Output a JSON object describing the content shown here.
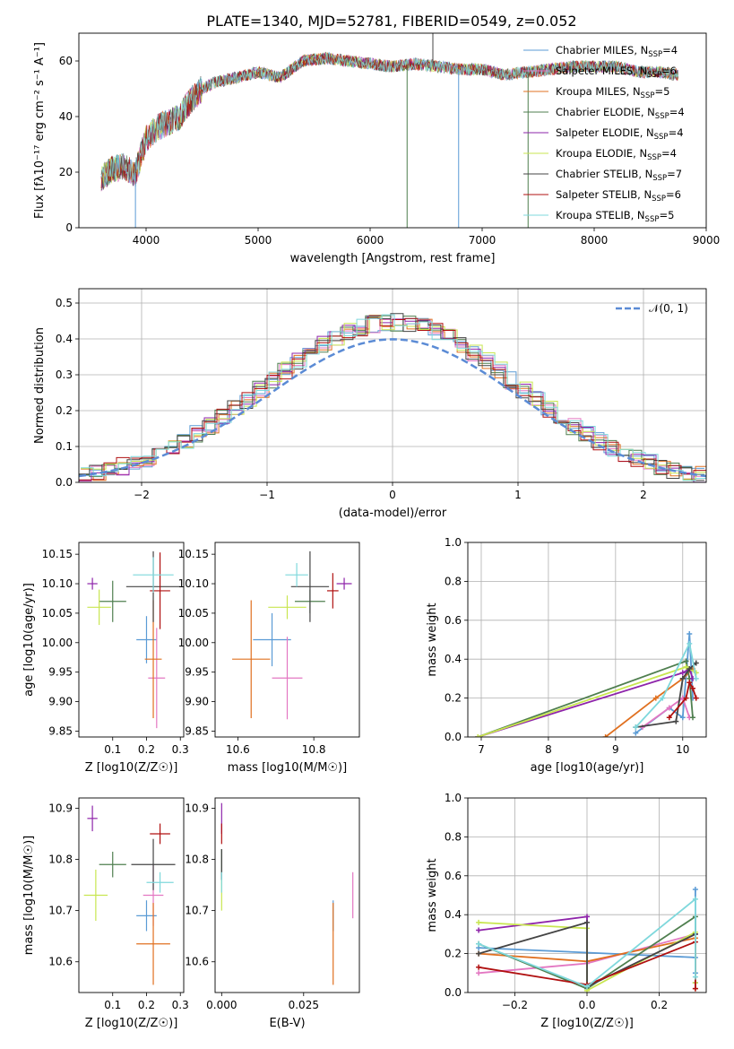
{
  "figure_title": "PLATE=1340, MJD=52781, FIBERID=0549, z=0.052",
  "models": [
    {
      "name": "Chabrier MILES",
      "nssp": "4",
      "color": "#5b9bd5"
    },
    {
      "name": "Salpeter MILES",
      "nssp": "6",
      "color": "#e377c2"
    },
    {
      "name": "Kroupa MILES",
      "nssp": "5",
      "color": "#e07020"
    },
    {
      "name": "Chabrier ELODIE",
      "nssp": "4",
      "color": "#4f7f4f"
    },
    {
      "name": "Salpeter ELODIE",
      "nssp": "4",
      "color": "#8e24aa"
    },
    {
      "name": "Kroupa ELODIE",
      "nssp": "4",
      "color": "#c8e650"
    },
    {
      "name": "Chabrier STELIB",
      "nssp": "7",
      "color": "#444444"
    },
    {
      "name": "Salpeter STELIB",
      "nssp": "6",
      "color": "#b01010"
    },
    {
      "name": "Kroupa STELIB",
      "nssp": "5",
      "color": "#7fd8dc"
    }
  ],
  "chart_data": [
    {
      "id": "spectrum",
      "type": "line",
      "xlabel": "wavelength [Angstrom, rest frame]",
      "ylabel": "Flux [fλ10⁻¹⁷ erg cm⁻² s⁻¹ A⁻¹]",
      "xlim": [
        3400,
        9000
      ],
      "ylim": [
        0,
        70
      ],
      "xticks": [
        4000,
        5000,
        6000,
        7000,
        8000,
        9000
      ],
      "yticks": [
        0,
        20,
        40,
        60
      ],
      "grid": false,
      "legend": "top-right",
      "shape_x": [
        3600,
        3700,
        3800,
        3900,
        4000,
        4100,
        4200,
        4300,
        4400,
        4500,
        4600,
        4800,
        5000,
        5200,
        5400,
        5600,
        5800,
        6000,
        6200,
        6400,
        6600,
        6800,
        7000,
        7200,
        7400,
        7600,
        7800,
        8000,
        8200,
        8400,
        8600,
        8750
      ],
      "shape_y": [
        18,
        21,
        22,
        19,
        32,
        36,
        38,
        40,
        46,
        50,
        52,
        54,
        56,
        54,
        60,
        61,
        60,
        59,
        58,
        59,
        58,
        57,
        57,
        55,
        56,
        57,
        58,
        58,
        58,
        56,
        56,
        55
      ],
      "spikes": [
        {
          "x": 3905,
          "y": 0
        },
        {
          "x": 6330,
          "y": 0
        },
        {
          "x": 6560,
          "y": 70
        },
        {
          "x": 6790,
          "y": 0
        },
        {
          "x": 7410,
          "y": 0
        }
      ]
    },
    {
      "id": "residuals",
      "type": "histogram",
      "xlabel": "(data-model)/error",
      "ylabel": "Normed distribution",
      "xlim": [
        -2.5,
        2.5
      ],
      "ylim": [
        0,
        0.54
      ],
      "xticks": [
        -2,
        -1,
        0,
        1,
        2
      ],
      "yticks": [
        0.0,
        0.1,
        0.2,
        0.3,
        0.4,
        0.5
      ],
      "grid": true,
      "legend": "top-right",
      "reference_curve": "𝒩(0, 1)",
      "reference_color": "#5b8bd5",
      "bin_width": 0.1
    },
    {
      "id": "age-vs-Z",
      "type": "scatter-errorbar",
      "xlabel": "Z [log10(Z/Z☉)]",
      "ylabel": "age  [log10(age/yr)]",
      "xlim": [
        0.0,
        0.31
      ],
      "ylim": [
        9.84,
        10.17
      ],
      "xticks": [
        0.1,
        0.2,
        0.3
      ],
      "yticks": [
        9.85,
        9.9,
        9.95,
        10.0,
        10.05,
        10.1,
        10.15
      ],
      "points": [
        {
          "m": 0,
          "x": 0.2,
          "y": 10.005,
          "xe": 0.03,
          "ye": 0.04
        },
        {
          "m": 1,
          "x": 0.23,
          "y": 9.94,
          "xe": 0.025,
          "ye": 0.085
        },
        {
          "m": 2,
          "x": 0.22,
          "y": 9.972,
          "xe": 0.025,
          "ye": 0.1
        },
        {
          "m": 3,
          "x": 0.1,
          "y": 10.07,
          "xe": 0.04,
          "ye": 0.035
        },
        {
          "m": 4,
          "x": 0.04,
          "y": 10.1,
          "xe": 0.015,
          "ye": 0.01
        },
        {
          "m": 5,
          "x": 0.06,
          "y": 10.06,
          "xe": 0.035,
          "ye": 0.03
        },
        {
          "m": 6,
          "x": 0.22,
          "y": 10.095,
          "xe": 0.08,
          "ye": 0.06
        },
        {
          "m": 7,
          "x": 0.24,
          "y": 10.088,
          "xe": 0.03,
          "ye": 0.065
        },
        {
          "m": 8,
          "x": 0.22,
          "y": 10.115,
          "xe": 0.06,
          "ye": 0.03
        }
      ]
    },
    {
      "id": "age-vs-mass",
      "type": "scatter-errorbar",
      "xlabel": "mass [log10(M/M☉)]",
      "ylabel": "",
      "xlim": [
        10.54,
        10.92
      ],
      "ylim": [
        9.84,
        10.17
      ],
      "xticks": [
        10.6,
        10.8
      ],
      "yticks": [
        9.85,
        9.9,
        9.95,
        10.0,
        10.05,
        10.1,
        10.15
      ],
      "points": [
        {
          "m": 0,
          "x": 10.69,
          "y": 10.005,
          "xe": 0.05,
          "ye": 0.045
        },
        {
          "m": 1,
          "x": 10.73,
          "y": 9.94,
          "xe": 0.04,
          "ye": 0.07
        },
        {
          "m": 2,
          "x": 10.635,
          "y": 9.972,
          "xe": 0.05,
          "ye": 0.1
        },
        {
          "m": 3,
          "x": 10.79,
          "y": 10.07,
          "xe": 0.04,
          "ye": 0.02
        },
        {
          "m": 4,
          "x": 10.88,
          "y": 10.1,
          "xe": 0.02,
          "ye": 0.01
        },
        {
          "m": 5,
          "x": 10.73,
          "y": 10.06,
          "xe": 0.05,
          "ye": 0.02
        },
        {
          "m": 6,
          "x": 10.79,
          "y": 10.095,
          "xe": 0.05,
          "ye": 0.06
        },
        {
          "m": 7,
          "x": 10.85,
          "y": 10.088,
          "xe": 0.015,
          "ye": 0.03
        },
        {
          "m": 8,
          "x": 10.755,
          "y": 10.115,
          "xe": 0.03,
          "ye": 0.02
        }
      ]
    },
    {
      "id": "mass-weight-vs-age",
      "type": "line",
      "xlabel": "age  [log10(age/yr)]",
      "ylabel": "mass weight",
      "xlim": [
        6.8,
        10.35
      ],
      "ylim": [
        0,
        1.0
      ],
      "xticks": [
        7,
        8,
        9,
        10
      ],
      "yticks": [
        0.0,
        0.2,
        0.4,
        0.6,
        0.8,
        1.0
      ],
      "grid": true,
      "series": [
        {
          "m": 0,
          "x": [
            9.3,
            9.8,
            10.0,
            10.1,
            10.15
          ],
          "y": [
            0.02,
            0.15,
            0.1,
            0.53,
            0.2
          ]
        },
        {
          "m": 1,
          "x": [
            9.4,
            9.8,
            10.0,
            10.1
          ],
          "y": [
            0.05,
            0.15,
            0.2,
            0.1
          ]
        },
        {
          "m": 2,
          "x": [
            8.85,
            9.6,
            10.0,
            10.15
          ],
          "y": [
            0.0,
            0.2,
            0.3,
            0.35
          ]
        },
        {
          "m": 3,
          "x": [
            6.95,
            10.05,
            10.1,
            10.15
          ],
          "y": [
            0.0,
            0.39,
            0.3,
            0.1
          ]
        },
        {
          "m": 4,
          "x": [
            6.95,
            10.0,
            10.1,
            10.15
          ],
          "y": [
            0.0,
            0.33,
            0.35,
            0.3
          ]
        },
        {
          "m": 5,
          "x": [
            6.95,
            10.05,
            10.1,
            10.2
          ],
          "y": [
            0.0,
            0.36,
            0.35,
            0.33
          ]
        },
        {
          "m": 6,
          "x": [
            9.3,
            9.9,
            10.0,
            10.1,
            10.2
          ],
          "y": [
            0.05,
            0.08,
            0.3,
            0.35,
            0.38
          ]
        },
        {
          "m": 7,
          "x": [
            9.8,
            10.05,
            10.1,
            10.15,
            10.2
          ],
          "y": [
            0.1,
            0.2,
            0.28,
            0.25,
            0.2
          ]
        },
        {
          "m": 8,
          "x": [
            9.3,
            9.7,
            10.1,
            10.2
          ],
          "y": [
            0.05,
            0.2,
            0.48,
            0.3
          ]
        }
      ]
    },
    {
      "id": "mass-vs-Z",
      "type": "scatter-errorbar",
      "xlabel": "Z [log10(Z/Z☉)]",
      "ylabel": "mass [log10(M/M☉)]",
      "xlim": [
        0.0,
        0.31
      ],
      "ylim": [
        10.54,
        10.92
      ],
      "xticks": [
        0.1,
        0.2,
        0.3
      ],
      "yticks": [
        10.6,
        10.7,
        10.8,
        10.9
      ],
      "points": [
        {
          "m": 0,
          "x": 0.2,
          "y": 10.69,
          "xe": 0.03,
          "ye": 0.03
        },
        {
          "m": 1,
          "x": 0.22,
          "y": 10.73,
          "xe": 0.03,
          "ye": 0.06
        },
        {
          "m": 2,
          "x": 0.22,
          "y": 10.635,
          "xe": 0.05,
          "ye": 0.08
        },
        {
          "m": 3,
          "x": 0.1,
          "y": 10.79,
          "xe": 0.04,
          "ye": 0.025
        },
        {
          "m": 4,
          "x": 0.04,
          "y": 10.88,
          "xe": 0.015,
          "ye": 0.025
        },
        {
          "m": 5,
          "x": 0.05,
          "y": 10.73,
          "xe": 0.035,
          "ye": 0.05
        },
        {
          "m": 6,
          "x": 0.22,
          "y": 10.79,
          "xe": 0.065,
          "ye": 0.05
        },
        {
          "m": 7,
          "x": 0.24,
          "y": 10.85,
          "xe": 0.03,
          "ye": 0.02
        },
        {
          "m": 8,
          "x": 0.24,
          "y": 10.755,
          "xe": 0.04,
          "ye": 0.02
        }
      ]
    },
    {
      "id": "mass-vs-EBV",
      "type": "scatter-errorbar",
      "xlabel": "E(B-V)",
      "ylabel": "",
      "xlim": [
        -0.002,
        0.042
      ],
      "ylim": [
        10.54,
        10.92
      ],
      "xticks": [
        0.0,
        0.025
      ],
      "yticks": [
        10.6,
        10.7,
        10.8,
        10.9
      ],
      "points": [
        {
          "m": 0,
          "x": 0.034,
          "y": 10.69,
          "xe": 0,
          "ye": 0.03
        },
        {
          "m": 1,
          "x": 0.04,
          "y": 10.73,
          "xe": 0,
          "ye": 0.045
        },
        {
          "m": 2,
          "x": 0.034,
          "y": 10.635,
          "xe": 0,
          "ye": 0.08
        },
        {
          "m": 3,
          "x": 0.0,
          "y": 10.79,
          "xe": 0,
          "ye": 0.03
        },
        {
          "m": 4,
          "x": 0.0,
          "y": 10.88,
          "xe": 0,
          "ye": 0.03
        },
        {
          "m": 5,
          "x": 0.0,
          "y": 10.73,
          "xe": 0,
          "ye": 0.03
        },
        {
          "m": 6,
          "x": 0.0,
          "y": 10.79,
          "xe": 0,
          "ye": 0.03
        },
        {
          "m": 7,
          "x": 0.0,
          "y": 10.85,
          "xe": 0,
          "ye": 0.02
        },
        {
          "m": 8,
          "x": 0.0,
          "y": 10.755,
          "xe": 0,
          "ye": 0.02
        }
      ]
    },
    {
      "id": "mass-weight-vs-Z",
      "type": "line",
      "xlabel": "Z [log10(Z/Z☉)]",
      "ylabel": "mass weight",
      "xlim": [
        -0.33,
        0.33
      ],
      "ylim": [
        0,
        1.0
      ],
      "xticks": [
        -0.2,
        0.0,
        0.2
      ],
      "yticks": [
        0.0,
        0.2,
        0.4,
        0.6,
        0.8,
        1.0
      ],
      "grid": true,
      "series": [
        {
          "m": 0,
          "x": [
            -0.3,
            0.3,
            0.3,
            0.3
          ],
          "y": [
            0.23,
            0.18,
            0.53,
            0.1
          ]
        },
        {
          "m": 1,
          "x": [
            -0.3,
            0.0,
            0.3,
            0.3
          ],
          "y": [
            0.1,
            0.15,
            0.3,
            0.05
          ]
        },
        {
          "m": 2,
          "x": [
            -0.3,
            0.0,
            0.3,
            0.3
          ],
          "y": [
            0.2,
            0.16,
            0.28,
            0.02
          ]
        },
        {
          "m": 3,
          "x": [
            -0.3,
            0.0,
            0.3,
            0.3
          ],
          "y": [
            0.25,
            0.02,
            0.39,
            0.05
          ]
        },
        {
          "m": 4,
          "x": [
            -0.3,
            0.0,
            0.0,
            0.3
          ],
          "y": [
            0.32,
            0.39,
            0.03,
            0.3
          ]
        },
        {
          "m": 5,
          "x": [
            -0.3,
            0.0,
            0.0,
            0.3,
            0.3
          ],
          "y": [
            0.36,
            0.33,
            0.01,
            0.31,
            0.05
          ]
        },
        {
          "m": 6,
          "x": [
            -0.3,
            0.0,
            0.0,
            0.3
          ],
          "y": [
            0.2,
            0.36,
            0.03,
            0.3
          ]
        },
        {
          "m": 7,
          "x": [
            -0.3,
            0.0,
            0.3,
            0.3
          ],
          "y": [
            0.13,
            0.04,
            0.26,
            0.02
          ]
        },
        {
          "m": 8,
          "x": [
            -0.3,
            0.0,
            0.3,
            0.3
          ],
          "y": [
            0.25,
            0.03,
            0.48,
            0.08
          ]
        }
      ]
    }
  ]
}
